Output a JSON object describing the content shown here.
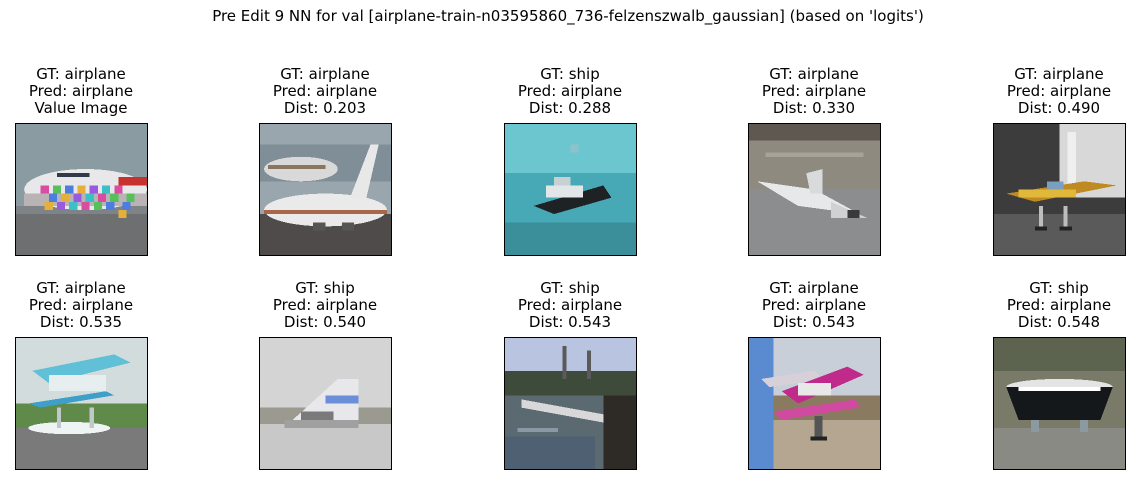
{
  "title": "Pre Edit 9 NN for val [airplane-train-n03595860_736-felzenszwalb_gaussian] (based on 'logits')",
  "panels": [
    {
      "gt": "GT: airplane",
      "pred": "Pred: airplane",
      "info": "Value Image",
      "scene": "airliner-noise"
    },
    {
      "gt": "GT: airplane",
      "pred": "Pred: airplane",
      "info": "Dist: 0.203",
      "scene": "airliners"
    },
    {
      "gt": "GT: ship",
      "pred": "Pred: airplane",
      "info": "Dist: 0.288",
      "scene": "boat-cyan"
    },
    {
      "gt": "GT: airplane",
      "pred": "Pred: airplane",
      "info": "Dist: 0.330",
      "scene": "jet-hangar"
    },
    {
      "gt": "GT: airplane",
      "pred": "Pred: airplane",
      "info": "Dist: 0.490",
      "scene": "small-plane-yellow"
    },
    {
      "gt": "GT: airplane",
      "pred": "Pred: airplane",
      "info": "Dist: 0.535",
      "scene": "seaplane-cyan"
    },
    {
      "gt": "GT: ship",
      "pred": "Pred: airplane",
      "info": "Dist: 0.540",
      "scene": "boat-grey"
    },
    {
      "gt": "GT: ship",
      "pred": "Pred: airplane",
      "info": "Dist: 0.543",
      "scene": "dock"
    },
    {
      "gt": "GT: airplane",
      "pred": "Pred: airplane",
      "info": "Dist: 0.543",
      "scene": "biplane-magenta"
    },
    {
      "gt": "GT: ship",
      "pred": "Pred: airplane",
      "info": "Dist: 0.548",
      "scene": "boat-dark"
    }
  ]
}
